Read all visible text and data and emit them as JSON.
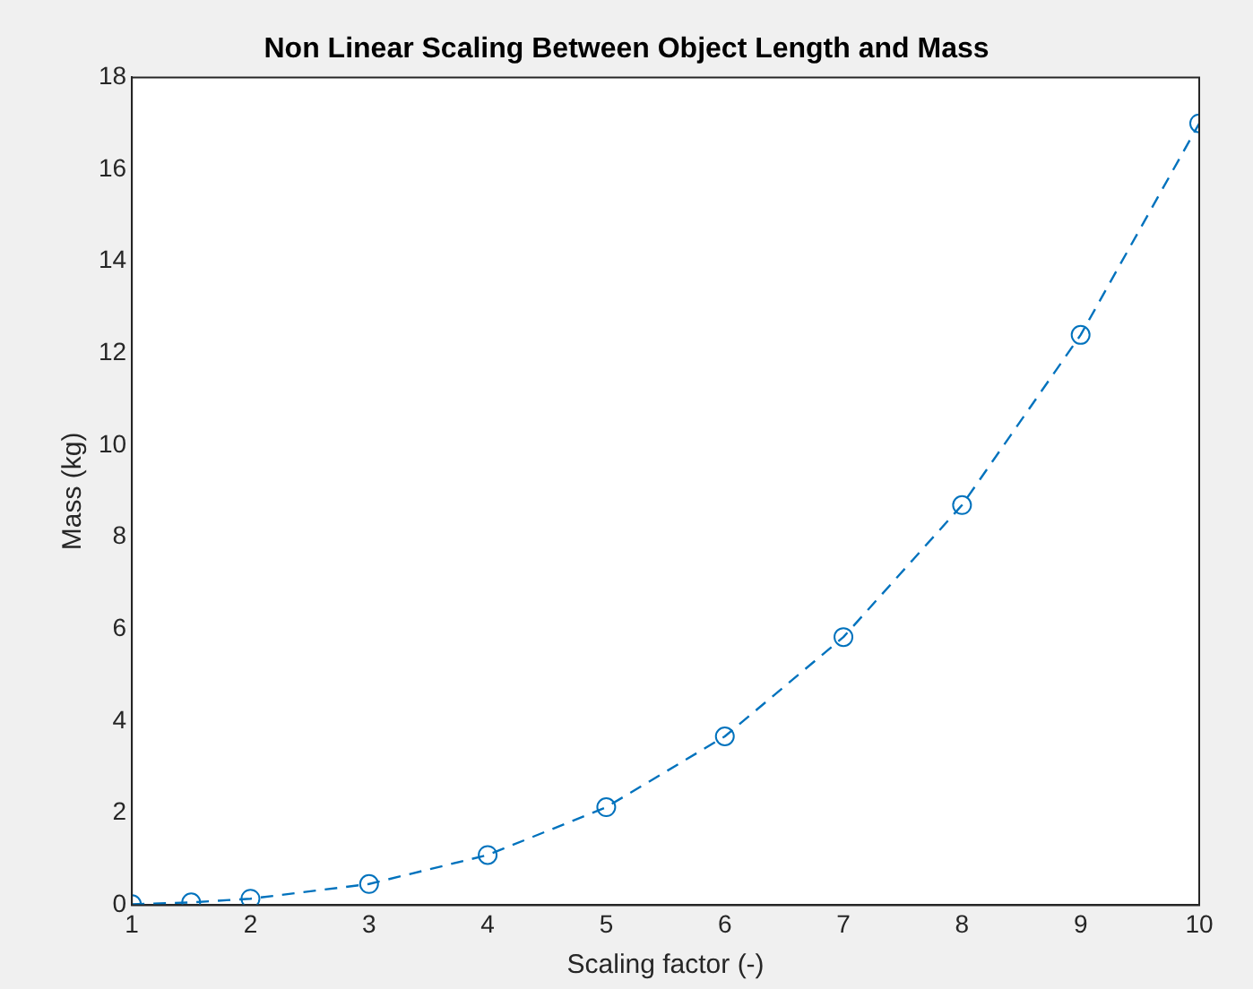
{
  "chart_data": {
    "type": "line",
    "title": "Non Linear Scaling Between Object Length and Mass",
    "xlabel": "Scaling factor (-)",
    "ylabel": "Mass (kg)",
    "x": [
      1,
      1.5,
      2,
      3,
      4,
      5,
      6,
      7,
      8,
      9,
      10
    ],
    "series": [
      {
        "color": "#0072bd",
        "values": [
          0.02,
          0.06,
          0.14,
          0.46,
          1.09,
          2.13,
          3.67,
          5.83,
          8.7,
          12.4,
          17
        ]
      }
    ],
    "xlim": [
      1,
      10
    ],
    "xticks": [
      1,
      2,
      3,
      4,
      5,
      6,
      7,
      8,
      9,
      10
    ],
    "ylim": [
      0,
      18
    ],
    "yticks": [
      0,
      2,
      4,
      6,
      8,
      10,
      12,
      14,
      16,
      18
    ],
    "marker": "circle",
    "line_style": "dashed",
    "legend": false
  }
}
